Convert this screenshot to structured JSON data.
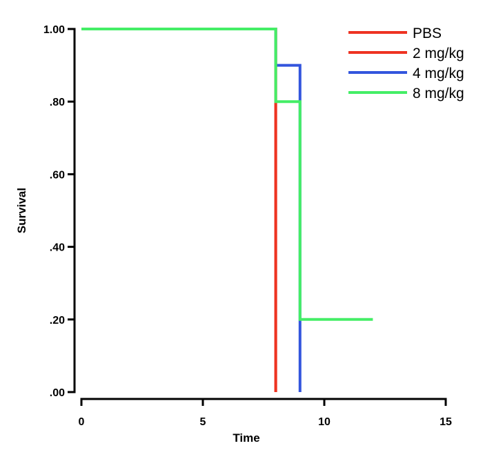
{
  "chart_data": {
    "type": "line",
    "step": true,
    "title": "",
    "xlabel": "Time",
    "ylabel": "Survival",
    "xlim": [
      0,
      15
    ],
    "ylim": [
      0,
      1
    ],
    "x_ticks": [
      0,
      5,
      10,
      15
    ],
    "x_tick_labels": [
      "0",
      "5",
      "10",
      "15"
    ],
    "y_ticks": [
      0,
      0.2,
      0.4,
      0.6,
      0.8,
      1.0
    ],
    "y_tick_labels": [
      ".00",
      ".20",
      ".40",
      ".60",
      ".80",
      "1.00"
    ],
    "grid": false,
    "legend_position": "top-right",
    "series": [
      {
        "name": "PBS",
        "color": "#ee3322",
        "points": [
          [
            0,
            1.0
          ],
          [
            8,
            1.0
          ],
          [
            8,
            0.0
          ]
        ]
      },
      {
        "name": "2 mg/kg",
        "color": "#ee3322",
        "points": [
          [
            0,
            1.0
          ],
          [
            8,
            1.0
          ],
          [
            8,
            0.0
          ]
        ]
      },
      {
        "name": "4 mg/kg",
        "color": "#3355dd",
        "points": [
          [
            0,
            1.0
          ],
          [
            8,
            1.0
          ],
          [
            8,
            0.9
          ],
          [
            9,
            0.9
          ],
          [
            9,
            0.0
          ]
        ]
      },
      {
        "name": "8 mg/kg",
        "color": "#44ee66",
        "points": [
          [
            0,
            1.0
          ],
          [
            8,
            1.0
          ],
          [
            8,
            0.8
          ],
          [
            9,
            0.8
          ],
          [
            9,
            0.2
          ],
          [
            12,
            0.2
          ]
        ]
      }
    ]
  }
}
